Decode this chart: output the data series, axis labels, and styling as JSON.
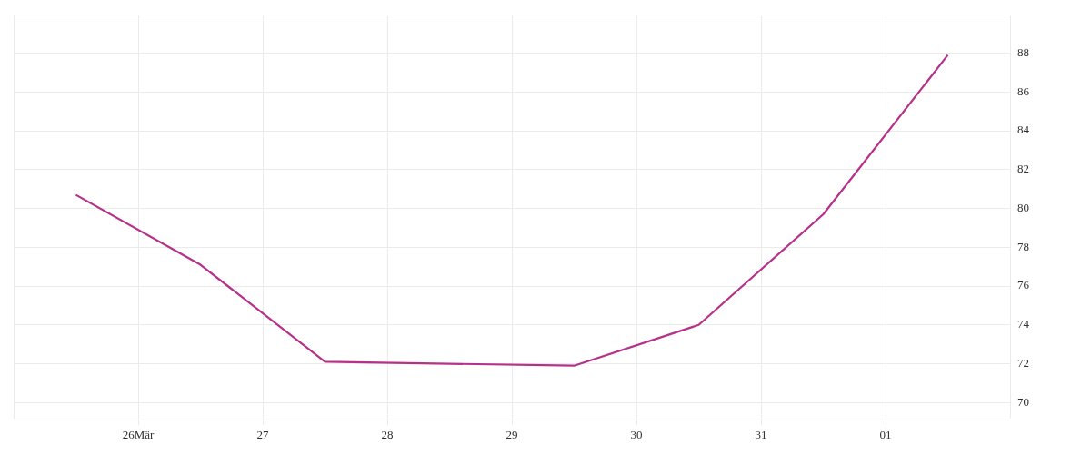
{
  "chart_data": {
    "type": "line",
    "x": [
      "--03-25T12:00",
      "--03-26T12:00",
      "--03-27T12:00",
      "--03-28T12:00",
      "--03-29T12:00",
      "--03-30T12:00",
      "--03-31T12:00",
      "--04-01T12:00"
    ],
    "series": [
      {
        "color": "#b5318a",
        "values": [
          80.7,
          77.1,
          72.1,
          72.0,
          71.9,
          74.0,
          79.7,
          87.9
        ]
      }
    ],
    "xlim": [
      "--03-25",
      "--04-02"
    ],
    "xticks": [
      {
        "value": "--03-26",
        "label": "26Mär"
      },
      {
        "value": "--03-27",
        "label": "27"
      },
      {
        "value": "--03-28",
        "label": "28"
      },
      {
        "value": "--03-29",
        "label": "29"
      },
      {
        "value": "--03-30",
        "label": "30"
      },
      {
        "value": "--03-31",
        "label": "31"
      },
      {
        "value": "--04-01",
        "label": "01"
      }
    ],
    "ylim": [
      69.2,
      90
    ],
    "yticks": [
      70,
      72,
      74,
      76,
      78,
      80,
      82,
      84,
      86,
      88
    ],
    "grid": true,
    "legend": false,
    "marker": "none",
    "line_style": "solid"
  }
}
